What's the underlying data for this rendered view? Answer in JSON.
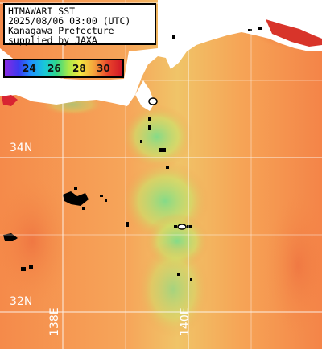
{
  "title_lines": [
    "HIMAWARI SST",
    "2025/08/06 03:00 (UTC)",
    "Kanagawa Prefecture",
    "supplied by JAXA"
  ],
  "colorbar": {
    "ticks": [
      "24",
      "26",
      "28",
      "30"
    ],
    "colors": [
      "#8a2be2",
      "#1e90ff",
      "#2fd68a",
      "#f2e640",
      "#f4a23c",
      "#d01828"
    ]
  },
  "grid": {
    "lat_labels": [
      "34N",
      "32N"
    ],
    "lon_labels": [
      "138E",
      "140E"
    ]
  },
  "colors": {
    "land": "#ffffff",
    "cloud": "#000000",
    "warm_sea": "#f59a52",
    "cool_sea": "#8fe06a",
    "grid": "#ffffff"
  }
}
